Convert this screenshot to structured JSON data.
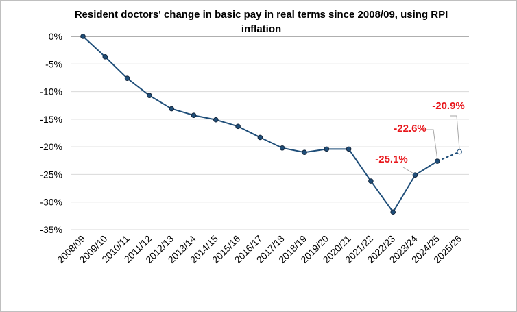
{
  "chart_data": {
    "type": "line",
    "title": "Resident doctors' change in basic pay in real terms since 2008/09, using RPI inflation",
    "xlabel": "",
    "ylabel": "",
    "ylim": [
      -35,
      0
    ],
    "yticks": [
      0,
      -5,
      -10,
      -15,
      -20,
      -25,
      -30,
      -35
    ],
    "ytick_labels": [
      "0%",
      "-5%",
      "-10%",
      "-15%",
      "-20%",
      "-25%",
      "-30%",
      "-35%"
    ],
    "grid": true,
    "legend": "none",
    "categories": [
      "2008/09",
      "2009/10",
      "2010/11",
      "2011/12",
      "2012/13",
      "2013/14",
      "2014/15",
      "2015/16",
      "2016/17",
      "2017/18",
      "2018/19",
      "2019/20",
      "2020/21",
      "2021/22",
      "2022/23",
      "2023/24",
      "2024/25",
      "2025/26"
    ],
    "series": [
      {
        "values": [
          0,
          -3.7,
          -7.6,
          -10.7,
          -13.1,
          -14.3,
          -15.1,
          -16.3,
          -18.3,
          -20.2,
          -21.0,
          -20.4,
          -20.4,
          -26.2,
          -31.8,
          -25.1,
          -22.6,
          -20.9
        ],
        "projected_from_index": 16,
        "color": "#1f4e79"
      }
    ],
    "annotations": [
      {
        "text": "-25.1%",
        "category": "2023/24",
        "value": -25.1,
        "color": "#e8161b"
      },
      {
        "text": "-22.6%",
        "category": "2024/25",
        "value": -22.6,
        "color": "#e8161b"
      },
      {
        "text": "-20.9%",
        "category": "2025/26",
        "value": -20.9,
        "color": "#e8161b"
      }
    ]
  }
}
